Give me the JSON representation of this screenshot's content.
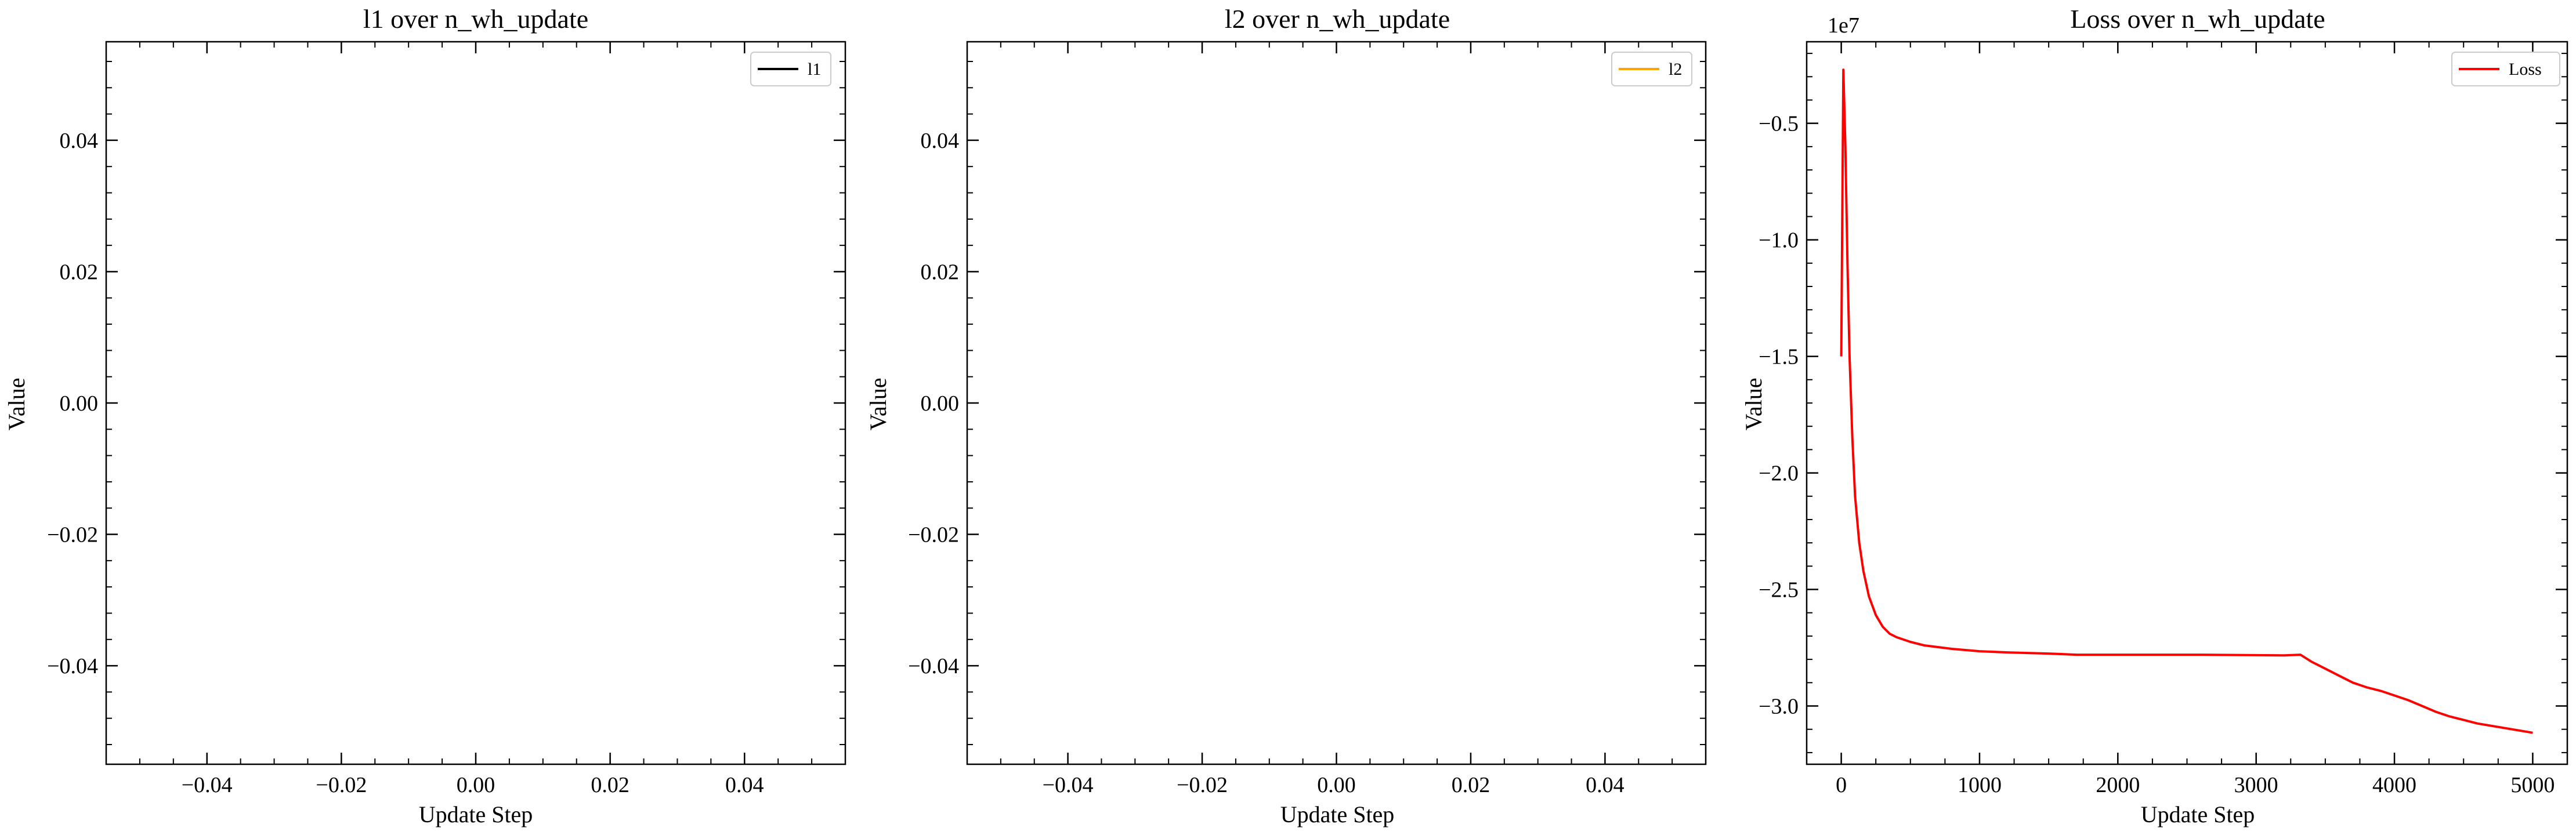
{
  "chart_data": [
    {
      "type": "line",
      "title": "l1 over n_wh_update",
      "xlabel": "Update Step",
      "ylabel": "Value",
      "xlim": [
        -0.055,
        0.055
      ],
      "ylim": [
        -0.055,
        0.055
      ],
      "xticks": [
        -0.04,
        -0.02,
        0.0,
        0.02,
        0.04
      ],
      "xticklabels": [
        "−0.04",
        "−0.02",
        "0.00",
        "0.02",
        "0.04"
      ],
      "yticks": [
        0.04,
        0.02,
        0.0,
        -0.02,
        -0.04
      ],
      "yticklabels": [
        "0.04",
        "0.02",
        "0.00",
        "−0.02",
        "−0.04"
      ],
      "legend_position": "top-right",
      "series": [
        {
          "name": "l1",
          "color": "#000000",
          "x": [],
          "y": []
        }
      ]
    },
    {
      "type": "line",
      "title": "l2 over n_wh_update",
      "xlabel": "Update Step",
      "ylabel": "Value",
      "xlim": [
        -0.055,
        0.055
      ],
      "ylim": [
        -0.055,
        0.055
      ],
      "xticks": [
        -0.04,
        -0.02,
        0.0,
        0.02,
        0.04
      ],
      "xticklabels": [
        "−0.04",
        "−0.02",
        "0.00",
        "0.02",
        "0.04"
      ],
      "yticks": [
        0.04,
        0.02,
        0.0,
        -0.02,
        -0.04
      ],
      "yticklabels": [
        "0.04",
        "0.02",
        "0.00",
        "−0.02",
        "−0.04"
      ],
      "legend_position": "top-right",
      "series": [
        {
          "name": "l2",
          "color": "#ffa500",
          "x": [],
          "y": []
        }
      ]
    },
    {
      "type": "line",
      "title": "Loss over n_wh_update",
      "xlabel": "Update Step",
      "ylabel": "Value",
      "offset_label": "1e7",
      "xlim": [
        -250,
        5250
      ],
      "ylim": [
        -3.25,
        -0.15
      ],
      "xticks": [
        0,
        1000,
        2000,
        3000,
        4000,
        5000
      ],
      "xticklabels": [
        "0",
        "1000",
        "2000",
        "3000",
        "4000",
        "5000"
      ],
      "yticks": [
        -0.5,
        -1.0,
        -1.5,
        -2.0,
        -2.5,
        -3.0
      ],
      "yticklabels": [
        "−0.5",
        "−1.0",
        "−1.5",
        "−2.0",
        "−2.5",
        "−3.0"
      ],
      "legend_position": "top-right",
      "series": [
        {
          "name": "Loss",
          "color": "#ff0000",
          "x": [
            0,
            15,
            30,
            45,
            60,
            80,
            100,
            130,
            160,
            200,
            250,
            300,
            350,
            400,
            500,
            600,
            800,
            1000,
            1200,
            1500,
            1700,
            2000,
            2300,
            2600,
            3000,
            3200,
            3320,
            3400,
            3500,
            3600,
            3700,
            3800,
            3900,
            4000,
            4100,
            4200,
            4300,
            4400,
            4500,
            4600,
            4700,
            4800,
            4900,
            5000
          ],
          "y": [
            -1.5,
            -0.27,
            -0.6,
            -1.1,
            -1.5,
            -1.85,
            -2.1,
            -2.3,
            -2.42,
            -2.53,
            -2.61,
            -2.66,
            -2.69,
            -2.705,
            -2.725,
            -2.74,
            -2.755,
            -2.765,
            -2.77,
            -2.775,
            -2.78,
            -2.78,
            -2.78,
            -2.78,
            -2.782,
            -2.783,
            -2.78,
            -2.81,
            -2.84,
            -2.87,
            -2.9,
            -2.92,
            -2.935,
            -2.955,
            -2.975,
            -3.0,
            -3.025,
            -3.045,
            -3.06,
            -3.075,
            -3.085,
            -3.095,
            -3.105,
            -3.115
          ]
        }
      ]
    }
  ]
}
